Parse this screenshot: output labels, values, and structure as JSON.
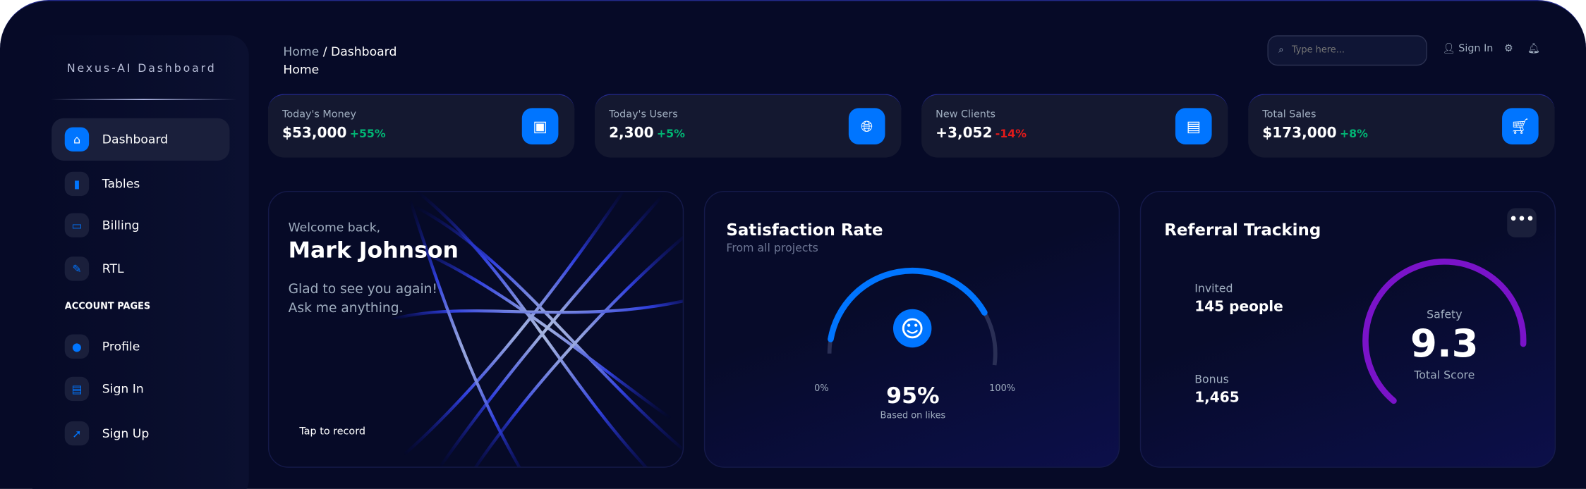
{
  "brand": "Nexus-AI Dashboard",
  "sidebar": {
    "items": [
      {
        "label": "Dashboard",
        "icon": "home-icon"
      },
      {
        "label": "Tables",
        "icon": "chart-icon"
      },
      {
        "label": "Billing",
        "icon": "credit-card-icon"
      },
      {
        "label": "RTL",
        "icon": "wrench-icon"
      }
    ],
    "section": "ACCOUNT PAGES",
    "account": [
      {
        "label": "Profile",
        "icon": "person-icon"
      },
      {
        "label": "Sign In",
        "icon": "document-icon"
      },
      {
        "label": "Sign Up",
        "icon": "rocket-icon"
      }
    ]
  },
  "header": {
    "crumb_root": "Home",
    "crumb_sep": "/",
    "crumb_current": "Dashboard",
    "title": "Home",
    "search_placeholder": "Type here...",
    "sign_in": "Sign In"
  },
  "stats": [
    {
      "label": "Today's Money",
      "value": "$53,000",
      "change": "+55%",
      "change_color": "#01b574",
      "icon": "wallet-icon"
    },
    {
      "label": "Today's Users",
      "value": "2,300",
      "change": "+5%",
      "change_color": "#01b574",
      "icon": "globe-icon"
    },
    {
      "label": "New Clients",
      "value": "+3,052",
      "change": "-14%",
      "change_color": "#e31a1a",
      "icon": "document-icon"
    },
    {
      "label": "Total Sales",
      "value": "$173,000",
      "change": "+8%",
      "change_color": "#01b574",
      "icon": "cart-icon"
    }
  ],
  "welcome": {
    "greeting": "Welcome back,",
    "name": "Mark Johnson",
    "line1": "Glad to see you again!",
    "line2": "Ask me anything.",
    "cta": "Tap to record"
  },
  "satisfaction": {
    "title": "Satisfaction Rate",
    "subtitle": "From all projects",
    "value": "95%",
    "percent": 95,
    "caption": "Based on likes",
    "min": "0%",
    "max": "100%",
    "accent": "#0075ff"
  },
  "referral": {
    "title": "Referral Tracking",
    "invited_label": "Invited",
    "invited_value": "145 people",
    "bonus_label": "Bonus",
    "bonus_value": "1,465",
    "gauge_label": "Safety",
    "score": "9.3",
    "score_caption": "Total Score",
    "score_fraction": 0.93,
    "accent": "#7a13c9"
  }
}
